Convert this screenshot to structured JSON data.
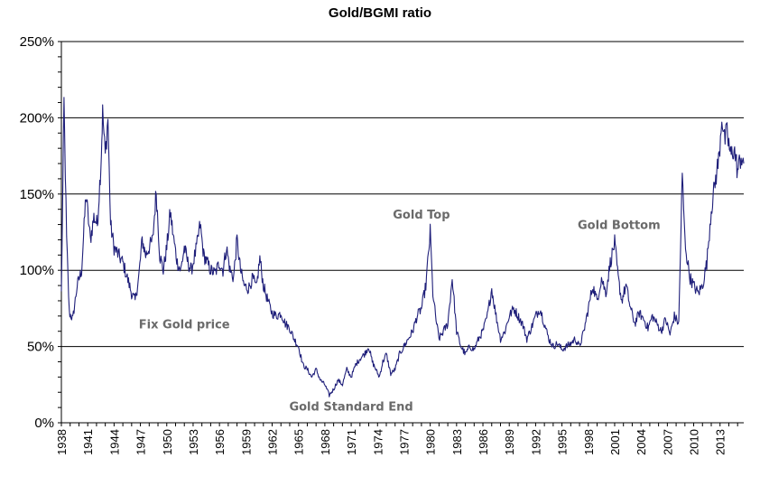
{
  "chart_data": {
    "type": "line",
    "title": "Gold/BGMI ratio",
    "xlabel": "",
    "ylabel": "",
    "ylim": [
      0,
      2.5
    ],
    "yticks": [
      {
        "value": 0,
        "label": "0%"
      },
      {
        "value": 0.5,
        "label": "50%"
      },
      {
        "value": 1.0,
        "label": "100%"
      },
      {
        "value": 1.5,
        "label": "150%"
      },
      {
        "value": 2.0,
        "label": "200%"
      },
      {
        "value": 2.5,
        "label": "250%"
      }
    ],
    "xlim": [
      1938,
      2015.7
    ],
    "xticks": [
      "1938",
      "1941",
      "1944",
      "1947",
      "1950",
      "1953",
      "1956",
      "1959",
      "1962",
      "1965",
      "1968",
      "1971",
      "1974",
      "1977",
      "1980",
      "1983",
      "1986",
      "1989",
      "1992",
      "1995",
      "1998",
      "2001",
      "2004",
      "2007",
      "2010",
      "2013"
    ],
    "grid": "horizontal",
    "line_color": "#1f1f7a",
    "series": [
      {
        "values": [
          [
            1938.0,
            0.85
          ],
          [
            1938.3,
            2.1
          ],
          [
            1938.6,
            1.2
          ],
          [
            1938.9,
            0.72
          ],
          [
            1939.3,
            0.68
          ],
          [
            1939.8,
            0.9
          ],
          [
            1940.3,
            1.0
          ],
          [
            1940.8,
            1.5
          ],
          [
            1941.3,
            1.2
          ],
          [
            1941.7,
            1.35
          ],
          [
            1942.1,
            1.3
          ],
          [
            1942.5,
            1.7
          ],
          [
            1942.7,
            2.03
          ],
          [
            1943.0,
            1.75
          ],
          [
            1943.3,
            2.0
          ],
          [
            1943.6,
            1.3
          ],
          [
            1944.0,
            1.15
          ],
          [
            1944.5,
            1.1
          ],
          [
            1945.0,
            1.05
          ],
          [
            1945.5,
            0.95
          ],
          [
            1946.0,
            0.85
          ],
          [
            1946.4,
            0.8
          ],
          [
            1946.8,
            0.95
          ],
          [
            1947.2,
            1.2
          ],
          [
            1947.6,
            1.1
          ],
          [
            1948.0,
            1.15
          ],
          [
            1948.4,
            1.2
          ],
          [
            1948.8,
            1.52
          ],
          [
            1949.2,
            1.1
          ],
          [
            1949.6,
            1.0
          ],
          [
            1950.0,
            1.15
          ],
          [
            1950.4,
            1.38
          ],
          [
            1950.8,
            1.2
          ],
          [
            1951.2,
            1.05
          ],
          [
            1951.6,
            1.0
          ],
          [
            1952.0,
            1.15
          ],
          [
            1952.4,
            1.05
          ],
          [
            1952.8,
            1.0
          ],
          [
            1953.4,
            1.15
          ],
          [
            1953.8,
            1.3
          ],
          [
            1954.2,
            1.1
          ],
          [
            1954.6,
            1.05
          ],
          [
            1955.0,
            1.0
          ],
          [
            1955.5,
            0.98
          ],
          [
            1956.0,
            1.05
          ],
          [
            1956.4,
            1.0
          ],
          [
            1956.8,
            1.15
          ],
          [
            1957.2,
            1.0
          ],
          [
            1957.6,
            0.95
          ],
          [
            1958.0,
            1.2
          ],
          [
            1958.4,
            1.0
          ],
          [
            1958.8,
            0.9
          ],
          [
            1959.3,
            0.88
          ],
          [
            1959.8,
            0.95
          ],
          [
            1960.2,
            0.88
          ],
          [
            1960.6,
            1.08
          ],
          [
            1961.0,
            0.9
          ],
          [
            1961.5,
            0.8
          ],
          [
            1962.0,
            0.72
          ],
          [
            1962.5,
            0.7
          ],
          [
            1963.0,
            0.72
          ],
          [
            1963.5,
            0.65
          ],
          [
            1964.0,
            0.62
          ],
          [
            1964.5,
            0.55
          ],
          [
            1965.0,
            0.5
          ],
          [
            1965.5,
            0.38
          ],
          [
            1966.0,
            0.35
          ],
          [
            1966.5,
            0.3
          ],
          [
            1967.0,
            0.35
          ],
          [
            1967.5,
            0.28
          ],
          [
            1968.0,
            0.25
          ],
          [
            1968.5,
            0.18
          ],
          [
            1969.0,
            0.22
          ],
          [
            1969.5,
            0.28
          ],
          [
            1970.0,
            0.25
          ],
          [
            1970.5,
            0.35
          ],
          [
            1971.0,
            0.3
          ],
          [
            1971.5,
            0.38
          ],
          [
            1972.0,
            0.42
          ],
          [
            1972.5,
            0.45
          ],
          [
            1973.0,
            0.5
          ],
          [
            1973.4,
            0.4
          ],
          [
            1973.8,
            0.35
          ],
          [
            1974.2,
            0.3
          ],
          [
            1974.6,
            0.4
          ],
          [
            1975.0,
            0.45
          ],
          [
            1975.5,
            0.32
          ],
          [
            1976.0,
            0.35
          ],
          [
            1976.5,
            0.45
          ],
          [
            1977.0,
            0.5
          ],
          [
            1977.5,
            0.55
          ],
          [
            1978.0,
            0.6
          ],
          [
            1978.5,
            0.7
          ],
          [
            1979.0,
            0.75
          ],
          [
            1979.5,
            0.9
          ],
          [
            1980.0,
            1.25
          ],
          [
            1980.3,
            0.85
          ],
          [
            1980.6,
            0.7
          ],
          [
            1981.0,
            0.55
          ],
          [
            1981.5,
            0.6
          ],
          [
            1982.0,
            0.65
          ],
          [
            1982.5,
            0.95
          ],
          [
            1983.0,
            0.6
          ],
          [
            1983.5,
            0.5
          ],
          [
            1984.0,
            0.45
          ],
          [
            1984.5,
            0.5
          ],
          [
            1985.0,
            0.48
          ],
          [
            1985.5,
            0.55
          ],
          [
            1986.0,
            0.6
          ],
          [
            1986.5,
            0.7
          ],
          [
            1987.0,
            0.88
          ],
          [
            1987.5,
            0.7
          ],
          [
            1988.0,
            0.55
          ],
          [
            1988.5,
            0.6
          ],
          [
            1989.0,
            0.7
          ],
          [
            1989.5,
            0.75
          ],
          [
            1990.0,
            0.7
          ],
          [
            1990.5,
            0.65
          ],
          [
            1991.0,
            0.55
          ],
          [
            1991.5,
            0.62
          ],
          [
            1992.0,
            0.7
          ],
          [
            1992.5,
            0.75
          ],
          [
            1993.0,
            0.65
          ],
          [
            1993.5,
            0.55
          ],
          [
            1994.0,
            0.5
          ],
          [
            1994.5,
            0.52
          ],
          [
            1995.0,
            0.48
          ],
          [
            1995.5,
            0.5
          ],
          [
            1996.0,
            0.52
          ],
          [
            1996.5,
            0.55
          ],
          [
            1997.0,
            0.5
          ],
          [
            1997.5,
            0.6
          ],
          [
            1998.0,
            0.75
          ],
          [
            1998.5,
            0.9
          ],
          [
            1999.0,
            0.8
          ],
          [
            1999.5,
            0.95
          ],
          [
            2000.0,
            0.85
          ],
          [
            2000.5,
            1.05
          ],
          [
            2001.0,
            1.18
          ],
          [
            2001.4,
            0.95
          ],
          [
            2001.8,
            0.8
          ],
          [
            2002.3,
            0.9
          ],
          [
            2002.8,
            0.75
          ],
          [
            2003.3,
            0.65
          ],
          [
            2003.8,
            0.72
          ],
          [
            2004.3,
            0.68
          ],
          [
            2004.8,
            0.62
          ],
          [
            2005.3,
            0.7
          ],
          [
            2005.8,
            0.65
          ],
          [
            2006.3,
            0.6
          ],
          [
            2006.8,
            0.68
          ],
          [
            2007.3,
            0.58
          ],
          [
            2007.8,
            0.7
          ],
          [
            2008.3,
            0.65
          ],
          [
            2008.7,
            1.62
          ],
          [
            2009.0,
            1.2
          ],
          [
            2009.3,
            1.05
          ],
          [
            2009.6,
            0.95
          ],
          [
            2010.0,
            0.9
          ],
          [
            2010.5,
            0.85
          ],
          [
            2011.0,
            0.9
          ],
          [
            2011.5,
            1.05
          ],
          [
            2012.0,
            1.4
          ],
          [
            2012.5,
            1.6
          ],
          [
            2012.9,
            1.75
          ],
          [
            2013.2,
            2.02
          ],
          [
            2013.5,
            1.85
          ],
          [
            2013.8,
            1.9
          ],
          [
            2014.2,
            1.75
          ],
          [
            2014.6,
            1.8
          ],
          [
            2015.0,
            1.65
          ],
          [
            2015.4,
            1.75
          ],
          [
            2015.7,
            1.7
          ]
        ]
      }
    ],
    "annotations": [
      {
        "text": "Fix Gold price",
        "x": 1952.0,
        "y": 0.62
      },
      {
        "text": "Gold Top",
        "x": 1979.0,
        "y": 1.34
      },
      {
        "text": "Gold Bottom",
        "x": 2001.5,
        "y": 1.27
      },
      {
        "text": "Gold Standard End",
        "x": 1971.0,
        "y": 0.08
      }
    ]
  }
}
